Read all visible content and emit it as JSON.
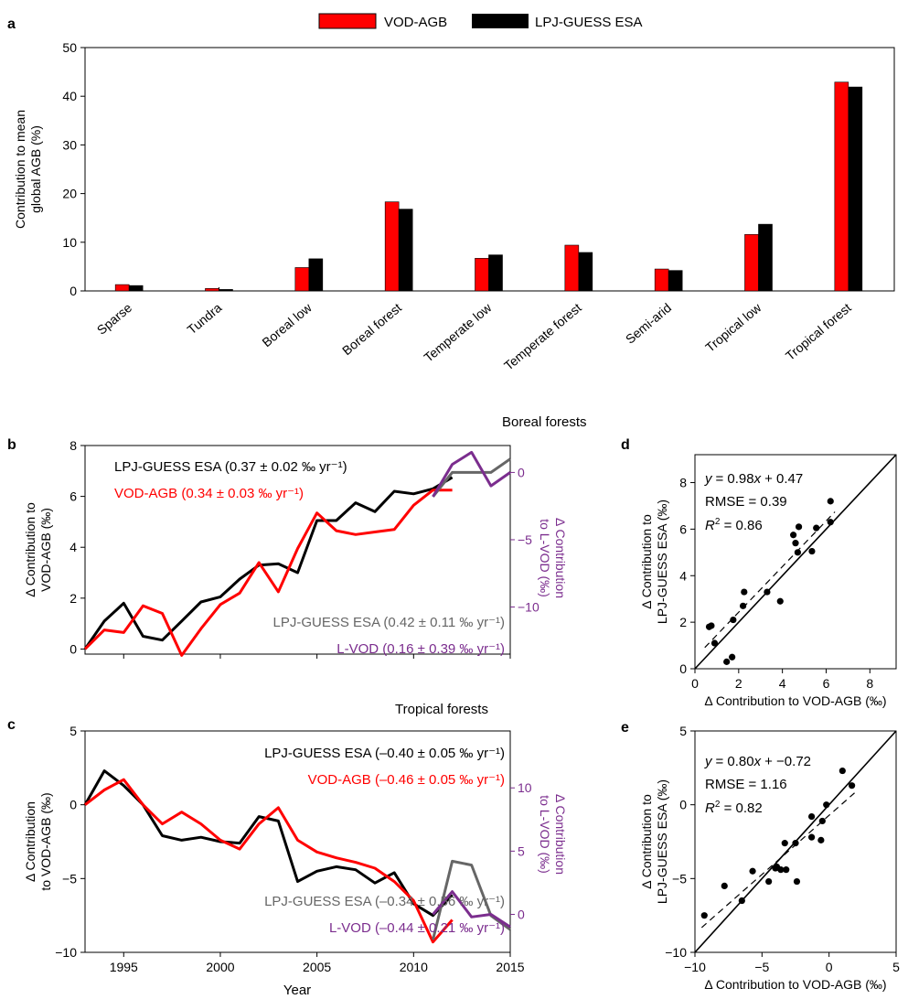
{
  "chart_data": [
    {
      "panel": "a",
      "type": "bar",
      "categories": [
        "Sparse",
        "Tundra",
        "Boreal low",
        "Boreal forest",
        "Temperate low",
        "Temperate forest",
        "Semi-arid",
        "Tropical low",
        "Tropical forest"
      ],
      "series": [
        {
          "name": "VOD-AGB",
          "color": "#ff0000",
          "values": [
            1.3,
            0.5,
            4.8,
            18.3,
            6.7,
            9.4,
            4.5,
            11.6,
            42.9
          ]
        },
        {
          "name": "LPJ-GUESS ESA",
          "color": "#000000",
          "values": [
            1.1,
            0.3,
            6.6,
            16.8,
            7.4,
            7.9,
            4.2,
            13.7,
            41.9
          ]
        }
      ],
      "ylabel": [
        "Contribution to mean",
        "global AGB (%)"
      ],
      "ylim": [
        0,
        50
      ],
      "yticks": [
        0,
        10,
        20,
        30,
        40,
        50
      ],
      "legend": "top-center"
    },
    {
      "panel": "b",
      "type": "line",
      "title": "Boreal forests",
      "ylabel": [
        "Δ Contribution to",
        "VOD-AGB (‰)"
      ],
      "ylabel_right": [
        "Δ Contribution",
        "to L-VOD (‰)"
      ],
      "ylim": [
        -0.2,
        8
      ],
      "yticks": [
        0,
        2,
        4,
        6,
        8
      ],
      "ylim_right": [
        -13.5,
        2
      ],
      "yticks_right": [
        0,
        -5,
        -10
      ],
      "xlim": [
        1993,
        2015
      ],
      "series": [
        {
          "name": "LPJ-GUESS ESA",
          "color": "#000000",
          "x": [
            1993,
            1994,
            1995,
            1996,
            1997,
            1998,
            1999,
            2000,
            2001,
            2002,
            2003,
            2004,
            2005,
            2006,
            2007,
            2008,
            2009,
            2010,
            2011,
            2012
          ],
          "y": [
            0,
            1.1,
            1.8,
            0.5,
            0.35,
            1.1,
            1.85,
            2.05,
            2.75,
            3.3,
            3.35,
            3.0,
            5.05,
            5.05,
            5.75,
            5.4,
            6.2,
            6.1,
            6.3,
            6.75
          ]
        },
        {
          "name": "VOD-AGB",
          "color": "#ff0000",
          "x": [
            1993,
            1994,
            1995,
            1996,
            1997,
            1998,
            1999,
            2000,
            2001,
            2002,
            2003,
            2004,
            2005,
            2006,
            2007,
            2008,
            2009,
            2010,
            2011,
            2012
          ],
          "y": [
            0,
            0.75,
            0.65,
            1.7,
            1.4,
            -0.25,
            0.8,
            1.75,
            2.2,
            3.4,
            2.25,
            3.95,
            5.35,
            4.65,
            4.5,
            4.6,
            4.7,
            5.65,
            6.25,
            6.25
          ]
        },
        {
          "name": "LPJ-GUESS ESA (right axis)",
          "color": "#666666",
          "axis": "right",
          "x": [
            2011,
            2012,
            2013,
            2014,
            2015
          ],
          "y": [
            -1.8,
            0,
            0,
            0,
            1
          ]
        },
        {
          "name": "L-VOD",
          "color": "#7b2d8e",
          "axis": "right",
          "x": [
            2011,
            2012,
            2013,
            2014,
            2015
          ],
          "y": [
            -1.8,
            0.6,
            1.5,
            -1.0,
            0
          ]
        }
      ],
      "annotations": [
        {
          "text": "LPJ-GUESS ESA (0.37 ± 0.02 ‰ yr⁻¹)",
          "color": "#000000"
        },
        {
          "text": "VOD-AGB (0.34 ± 0.03 ‰ yr⁻¹)",
          "color": "#ff0000"
        },
        {
          "text": "LPJ-GUESS ESA (0.42 ± 0.11 ‰ yr⁻¹)",
          "color": "#666666"
        },
        {
          "text": "L-VOD (0.16 ± 0.39 ‰ yr⁻¹)",
          "color": "#7b2d8e"
        }
      ]
    },
    {
      "panel": "c",
      "type": "line",
      "title": "Tropical forests",
      "xlabel": "Year",
      "ylabel": [
        "Δ Contribution",
        "to VOD-AGB (‰)"
      ],
      "ylabel_right": [
        "Δ Contribution",
        "to L-VOD (‰)"
      ],
      "ylim": [
        -10,
        5
      ],
      "yticks": [
        -10,
        -5,
        0,
        5
      ],
      "ylim_right": [
        -3,
        14.5
      ],
      "yticks_right": [
        0,
        5,
        10
      ],
      "xlim": [
        1993,
        2015
      ],
      "xticks": [
        1995,
        2000,
        2005,
        2010,
        2015
      ],
      "series": [
        {
          "name": "LPJ-GUESS ESA",
          "color": "#000000",
          "x": [
            1993,
            1994,
            1995,
            1996,
            1997,
            1998,
            1999,
            2000,
            2001,
            2002,
            2003,
            2004,
            2005,
            2006,
            2007,
            2008,
            2009,
            2010,
            2011,
            2012
          ],
          "y": [
            0,
            2.3,
            1.3,
            0,
            -2.1,
            -2.4,
            -2.2,
            -2.5,
            -2.6,
            -0.8,
            -1.1,
            -5.2,
            -4.5,
            -4.2,
            -4.4,
            -5.3,
            -4.6,
            -6.7,
            -7.5,
            -6.1
          ]
        },
        {
          "name": "VOD-AGB",
          "color": "#ff0000",
          "x": [
            1993,
            1994,
            1995,
            1996,
            1997,
            1998,
            1999,
            2000,
            2001,
            2002,
            2003,
            2004,
            2005,
            2006,
            2007,
            2008,
            2009,
            2010,
            2011,
            2012
          ],
          "y": [
            0,
            1.0,
            1.7,
            0,
            -1.3,
            -0.5,
            -1.3,
            -2.4,
            -3.0,
            -1.3,
            -0.2,
            -2.4,
            -3.2,
            -3.6,
            -3.9,
            -4.3,
            -5.2,
            -6.5,
            -9.3,
            -7.8
          ]
        },
        {
          "name": "LPJ-GUESS ESA (right axis)",
          "color": "#666666",
          "axis": "right",
          "x": [
            2011,
            2012,
            2013,
            2014,
            2015
          ],
          "y": [
            -2.0,
            4.2,
            3.9,
            -0.1,
            -1.2
          ]
        },
        {
          "name": "L-VOD",
          "color": "#7b2d8e",
          "axis": "right",
          "x": [
            2011,
            2012,
            2013,
            2014,
            2015
          ],
          "y": [
            0,
            1.8,
            -0.2,
            0,
            -1.0
          ]
        }
      ],
      "annotations": [
        {
          "text": "LPJ-GUESS ESA (–0.40 ± 0.05 ‰ yr⁻¹)",
          "color": "#000000"
        },
        {
          "text": "VOD-AGB (–0.46 ± 0.05 ‰ yr⁻¹)",
          "color": "#ff0000"
        },
        {
          "text": "LPJ-GUESS ESA (–0.34 ± 0.56 ‰ yr⁻¹)",
          "color": "#666666"
        },
        {
          "text": "L-VOD (–0.44 ± 0.21 ‰ yr⁻¹)",
          "color": "#7b2d8e"
        }
      ]
    },
    {
      "panel": "d",
      "type": "scatter",
      "xlabel": "Δ Contribution to VOD-AGB (‰)",
      "ylabel": [
        "Δ Contribution to",
        "LPJ-GUESS ESA (‰)"
      ],
      "xlim": [
        0,
        9.2
      ],
      "ylim": [
        0,
        9.2
      ],
      "xticks": [
        0,
        2,
        4,
        6,
        8
      ],
      "yticks": [
        0,
        2,
        4,
        6,
        8
      ],
      "points": {
        "x": [
          0.65,
          0.75,
          0.9,
          1.45,
          1.7,
          1.75,
          2.2,
          2.25,
          3.3,
          3.9,
          4.5,
          4.6,
          4.7,
          4.75,
          5.35,
          5.55,
          6.2,
          6.2
        ],
        "y": [
          1.8,
          1.85,
          1.1,
          0.3,
          0.5,
          2.1,
          2.7,
          3.3,
          3.3,
          2.9,
          5.75,
          5.4,
          5.0,
          6.1,
          5.05,
          6.05,
          7.2,
          6.3
        ]
      },
      "fit": {
        "slope": 0.98,
        "intercept": 0.47
      },
      "stats": {
        "rmse": "0.39",
        "r2": "0.86"
      }
    },
    {
      "panel": "e",
      "type": "scatter",
      "xlabel": "Δ Contribution to VOD-AGB (‰)",
      "ylabel": [
        "Δ Contribution to",
        "LPJ-GUESS ESA (‰)"
      ],
      "xlim": [
        -10,
        5
      ],
      "ylim": [
        -10,
        5
      ],
      "xticks": [
        -10,
        -5,
        0,
        5
      ],
      "yticks": [
        -10,
        -5,
        0,
        5
      ],
      "points": {
        "x": [
          -9.3,
          -7.8,
          -6.5,
          -5.7,
          -4.5,
          -4.0,
          -3.9,
          -3.6,
          -3.3,
          -3.2,
          -2.5,
          -2.4,
          -1.3,
          -1.3,
          -0.6,
          -0.5,
          -0.2,
          1.0,
          1.7
        ],
        "y": [
          -7.5,
          -5.5,
          -6.5,
          -4.5,
          -5.2,
          -4.3,
          -4.2,
          -4.4,
          -2.6,
          -4.4,
          -2.6,
          -5.2,
          -2.2,
          -0.8,
          -2.4,
          -1.1,
          0.0,
          2.3,
          1.3
        ]
      },
      "fit": {
        "slope": 0.8,
        "intercept": -0.72
      },
      "stats": {
        "rmse": "1.16",
        "r2": "0.82"
      }
    }
  ],
  "panels": {
    "a": {
      "letter": "a",
      "legend": [
        "VOD-AGB",
        "LPJ-GUESS ESA"
      ]
    },
    "b": {
      "letter": "b",
      "title": "Boreal forests"
    },
    "c": {
      "letter": "c",
      "title": "Tropical forests",
      "xlabel": "Year"
    },
    "d": {
      "letter": "d",
      "eq_rhs": "= 0.98",
      "eq_tail": "+ 0.47",
      "rmse": "RMSE = 0.39",
      "r2_tail": " = 0.86"
    },
    "e": {
      "letter": "e",
      "eq_rhs": "= 0.80",
      "eq_tail": "+ −0.72",
      "rmse": "RMSE = 1.16",
      "r2_tail": " = 0.82"
    }
  }
}
